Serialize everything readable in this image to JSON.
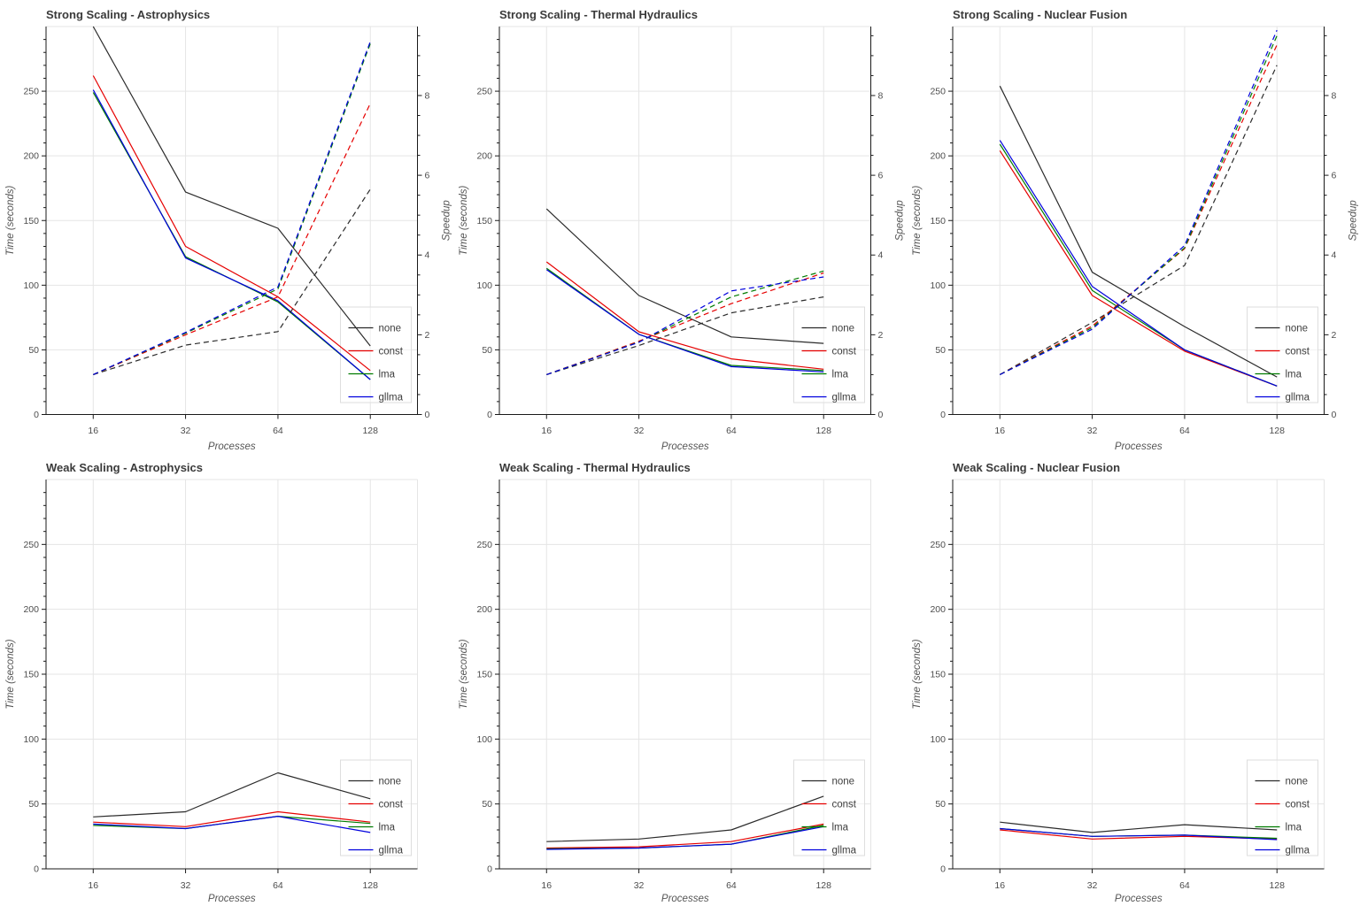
{
  "colors": {
    "background": "#ffffff",
    "grid": "#e5e5e5",
    "frame_light": "#e5e5e5",
    "spine": "#1a1a1a",
    "tick_label": "#4d4d4d",
    "axis_label": "#555555",
    "title": "#3a3a3a",
    "legend_text": "#3d3d3d",
    "legend_border": "#dedede",
    "series": {
      "none": "#2b2b2b",
      "const": "#e60000",
      "lma": "#007c00",
      "gllma": "#0000dd"
    }
  },
  "legend": {
    "entries": [
      "none",
      "const",
      "lma",
      "gllma"
    ],
    "position": "bottom-right"
  },
  "chart_data": [
    {
      "type": "line",
      "title": "Strong Scaling - Astrophysics",
      "xlabel": "Processes",
      "ylabel": "Time (seconds)",
      "y2label": "Speedup",
      "x": [
        16,
        32,
        64,
        128
      ],
      "xscale": "log2",
      "ylim": [
        0,
        300
      ],
      "yticks": [
        0,
        50,
        100,
        150,
        200,
        250
      ],
      "y_minor_step": 10,
      "y2lim": [
        0,
        9.73
      ],
      "y2ticks": [
        0,
        2,
        4,
        6,
        8
      ],
      "y2_minor_step": 0.5,
      "grid": true,
      "legend": [
        "none",
        "const",
        "lma",
        "gllma"
      ],
      "series": [
        {
          "name": "none",
          "axis": "y",
          "line": "solid",
          "values": [
            300,
            172,
            144,
            53
          ]
        },
        {
          "name": "const",
          "axis": "y",
          "line": "solid",
          "values": [
            262,
            130,
            91,
            34
          ]
        },
        {
          "name": "lma",
          "axis": "y",
          "line": "solid",
          "values": [
            249,
            122,
            87,
            27
          ]
        },
        {
          "name": "gllma",
          "axis": "y",
          "line": "solid",
          "values": [
            251,
            121,
            88,
            27
          ]
        },
        {
          "name": "none",
          "axis": "y2",
          "line": "dashed",
          "values": [
            1.0,
            1.74,
            2.08,
            5.65
          ]
        },
        {
          "name": "const",
          "axis": "y2",
          "line": "dashed",
          "values": [
            1.0,
            2.0,
            2.95,
            7.8
          ]
        },
        {
          "name": "lma",
          "axis": "y2",
          "line": "dashed",
          "values": [
            1.0,
            2.04,
            3.15,
            9.3
          ]
        },
        {
          "name": "gllma",
          "axis": "y2",
          "line": "dashed",
          "values": [
            1.0,
            2.06,
            3.2,
            9.35
          ]
        }
      ]
    },
    {
      "type": "line",
      "title": "Strong Scaling - Thermal Hydraulics",
      "xlabel": "Processes",
      "ylabel": "Time (seconds)",
      "y2label": "Speedup",
      "x": [
        16,
        32,
        64,
        128
      ],
      "xscale": "log2",
      "ylim": [
        0,
        300
      ],
      "yticks": [
        0,
        50,
        100,
        150,
        200,
        250
      ],
      "y_minor_step": 10,
      "y2lim": [
        0,
        9.73
      ],
      "y2ticks": [
        0,
        2,
        4,
        6,
        8
      ],
      "y2_minor_step": 0.5,
      "grid": true,
      "legend": [
        "none",
        "const",
        "lma",
        "gllma"
      ],
      "series": [
        {
          "name": "none",
          "axis": "y",
          "line": "solid",
          "values": [
            159,
            92,
            60,
            55
          ]
        },
        {
          "name": "const",
          "axis": "y",
          "line": "solid",
          "values": [
            118,
            64,
            43,
            35
          ]
        },
        {
          "name": "lma",
          "axis": "y",
          "line": "solid",
          "values": [
            113,
            62,
            38,
            34
          ]
        },
        {
          "name": "gllma",
          "axis": "y",
          "line": "solid",
          "values": [
            112,
            62,
            37,
            33
          ]
        },
        {
          "name": "none",
          "axis": "y2",
          "line": "dashed",
          "values": [
            1.0,
            1.73,
            2.55,
            2.95
          ]
        },
        {
          "name": "const",
          "axis": "y2",
          "line": "dashed",
          "values": [
            1.0,
            1.84,
            2.78,
            3.55
          ]
        },
        {
          "name": "lma",
          "axis": "y2",
          "line": "dashed",
          "values": [
            1.0,
            1.82,
            2.95,
            3.6
          ]
        },
        {
          "name": "gllma",
          "axis": "y2",
          "line": "dashed",
          "values": [
            1.0,
            1.81,
            3.1,
            3.45
          ]
        }
      ]
    },
    {
      "type": "line",
      "title": "Strong Scaling - Nuclear Fusion",
      "xlabel": "Processes",
      "ylabel": "Time (seconds)",
      "y2label": "Speedup",
      "x": [
        16,
        32,
        64,
        128
      ],
      "xscale": "log2",
      "ylim": [
        0,
        300
      ],
      "yticks": [
        0,
        50,
        100,
        150,
        200,
        250
      ],
      "y_minor_step": 10,
      "y2lim": [
        0,
        9.73
      ],
      "y2ticks": [
        0,
        2,
        4,
        6,
        8
      ],
      "y2_minor_step": 0.5,
      "grid": true,
      "legend": [
        "none",
        "const",
        "lma",
        "gllma"
      ],
      "series": [
        {
          "name": "none",
          "axis": "y",
          "line": "solid",
          "values": [
            254,
            110,
            68,
            29
          ]
        },
        {
          "name": "const",
          "axis": "y",
          "line": "solid",
          "values": [
            204,
            92,
            49,
            22
          ]
        },
        {
          "name": "lma",
          "axis": "y",
          "line": "solid",
          "values": [
            209,
            96,
            50,
            22
          ]
        },
        {
          "name": "gllma",
          "axis": "y",
          "line": "solid",
          "values": [
            212,
            99,
            50,
            22
          ]
        },
        {
          "name": "none",
          "axis": "y2",
          "line": "dashed",
          "values": [
            1.0,
            2.31,
            3.74,
            8.76
          ]
        },
        {
          "name": "const",
          "axis": "y2",
          "line": "dashed",
          "values": [
            1.0,
            2.22,
            4.16,
            9.27
          ]
        },
        {
          "name": "lma",
          "axis": "y2",
          "line": "dashed",
          "values": [
            1.0,
            2.18,
            4.18,
            9.5
          ]
        },
        {
          "name": "gllma",
          "axis": "y2",
          "line": "dashed",
          "values": [
            1.0,
            2.14,
            4.24,
            9.64
          ]
        }
      ]
    },
    {
      "type": "line",
      "title": "Weak Scaling - Astrophysics",
      "xlabel": "Processes",
      "ylabel": "Time (seconds)",
      "y2label": null,
      "x": [
        16,
        32,
        64,
        128
      ],
      "xscale": "log2",
      "ylim": [
        0,
        300
      ],
      "yticks": [
        0,
        50,
        100,
        150,
        200,
        250
      ],
      "y_minor_step": 10,
      "y2lim": null,
      "y2ticks": null,
      "grid": true,
      "legend": [
        "none",
        "const",
        "lma",
        "gllma"
      ],
      "series": [
        {
          "name": "none",
          "axis": "y",
          "line": "solid",
          "values": [
            40,
            44,
            74,
            54
          ]
        },
        {
          "name": "const",
          "axis": "y",
          "line": "solid",
          "values": [
            36,
            32.5,
            44,
            36
          ]
        },
        {
          "name": "lma",
          "axis": "y",
          "line": "solid",
          "values": [
            33.5,
            31,
            40.5,
            35
          ]
        },
        {
          "name": "gllma",
          "axis": "y",
          "line": "solid",
          "values": [
            34.5,
            31,
            40.5,
            28
          ]
        }
      ]
    },
    {
      "type": "line",
      "title": "Weak Scaling - Thermal Hydraulics",
      "xlabel": "Processes",
      "ylabel": "Time (seconds)",
      "y2label": null,
      "x": [
        16,
        32,
        64,
        128
      ],
      "xscale": "log2",
      "ylim": [
        0,
        300
      ],
      "yticks": [
        0,
        50,
        100,
        150,
        200,
        250
      ],
      "y_minor_step": 10,
      "y2lim": null,
      "y2ticks": null,
      "grid": true,
      "legend": [
        "none",
        "const",
        "lma",
        "gllma"
      ],
      "series": [
        {
          "name": "none",
          "axis": "y",
          "line": "solid",
          "values": [
            21,
            23,
            30,
            56
          ]
        },
        {
          "name": "const",
          "axis": "y",
          "line": "solid",
          "values": [
            16,
            17,
            21,
            34.5
          ]
        },
        {
          "name": "lma",
          "axis": "y",
          "line": "solid",
          "values": [
            15.5,
            16,
            19,
            33.5
          ]
        },
        {
          "name": "gllma",
          "axis": "y",
          "line": "solid",
          "values": [
            15,
            16,
            19,
            32.5
          ]
        }
      ]
    },
    {
      "type": "line",
      "title": "Weak Scaling - Nuclear Fusion",
      "xlabel": "Processes",
      "ylabel": "Time (seconds)",
      "y2label": null,
      "x": [
        16,
        32,
        64,
        128
      ],
      "xscale": "log2",
      "ylim": [
        0,
        300
      ],
      "yticks": [
        0,
        50,
        100,
        150,
        200,
        250
      ],
      "y_minor_step": 10,
      "y2lim": null,
      "y2ticks": null,
      "grid": true,
      "legend": [
        "none",
        "const",
        "lma",
        "gllma"
      ],
      "series": [
        {
          "name": "none",
          "axis": "y",
          "line": "solid",
          "values": [
            36,
            28,
            34,
            30
          ]
        },
        {
          "name": "const",
          "axis": "y",
          "line": "solid",
          "values": [
            30,
            23,
            25,
            23
          ]
        },
        {
          "name": "lma",
          "axis": "y",
          "line": "solid",
          "values": [
            31,
            25,
            26,
            23.5
          ]
        },
        {
          "name": "gllma",
          "axis": "y",
          "line": "solid",
          "values": [
            31,
            25,
            26,
            22.5
          ]
        }
      ]
    }
  ]
}
